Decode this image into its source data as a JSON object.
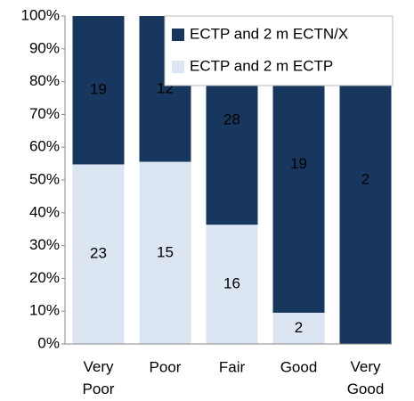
{
  "chart_data": {
    "type": "bar",
    "stacking": "percent",
    "categories": [
      "Very Poor",
      "Poor",
      "Fair",
      "Good",
      "Very Good"
    ],
    "series": [
      {
        "name": "ECTP and 2 m ECTP",
        "color": "#dce6f2",
        "values": [
          23,
          15,
          16,
          2,
          0
        ]
      },
      {
        "name": "ECTP and 2 m ECTN/X",
        "color": "#17375e",
        "values": [
          19,
          12,
          28,
          19,
          2
        ]
      }
    ],
    "ylim": [
      0,
      100
    ],
    "yticks": [
      {
        "value": 0,
        "label": "0%"
      },
      {
        "value": 10,
        "label": "10%"
      },
      {
        "value": 20,
        "label": "20%"
      },
      {
        "value": 30,
        "label": "30%"
      },
      {
        "value": 40,
        "label": "40%"
      },
      {
        "value": 50,
        "label": "50%"
      },
      {
        "value": 60,
        "label": "60%"
      },
      {
        "value": 70,
        "label": "70%"
      },
      {
        "value": 80,
        "label": "80%"
      },
      {
        "value": 90,
        "label": "90%"
      },
      {
        "value": 100,
        "label": "100%"
      }
    ],
    "legend": "top-right",
    "grid": false
  }
}
